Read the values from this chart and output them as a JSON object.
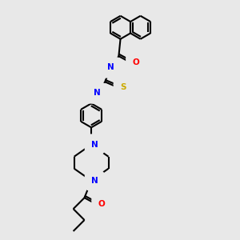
{
  "background_color": "#e8e8e8",
  "bond_color": "#000000",
  "bond_width": 1.5,
  "atom_colors": {
    "N": "#0000ff",
    "O": "#ff0000",
    "S": "#ccaa00",
    "H": "#008080",
    "C": "#000000"
  },
  "font_size": 7.5,
  "fig_width": 3.0,
  "fig_height": 3.0,
  "dpi": 100
}
